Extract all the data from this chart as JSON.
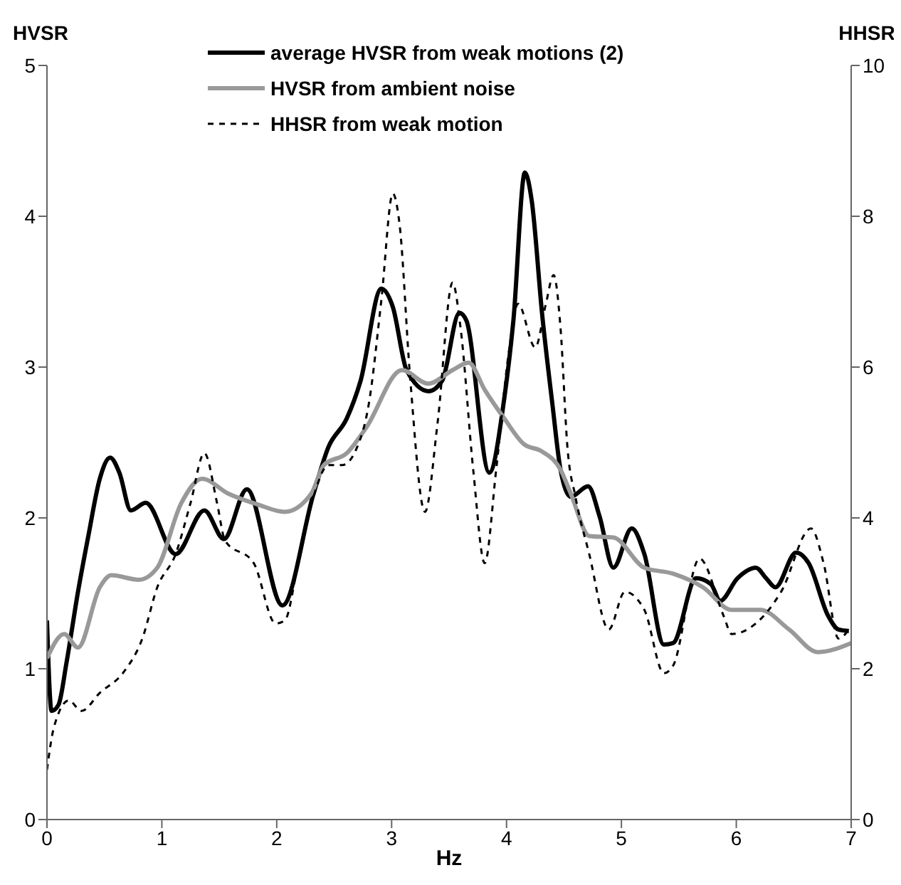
{
  "chart_data": {
    "type": "line",
    "xlabel": "Hz",
    "ylabel": "HVSR",
    "y2label": "HHSR",
    "xlim": [
      0,
      7
    ],
    "xticks": [
      0,
      1,
      2,
      3,
      4,
      5,
      6,
      7
    ],
    "ylim": [
      0,
      5
    ],
    "yticks": [
      0,
      1,
      2,
      3,
      4,
      5
    ],
    "y2lim": [
      0,
      10
    ],
    "y2ticks": [
      0,
      2,
      4,
      6,
      8,
      10
    ],
    "grid": false,
    "legend": "top",
    "marker": "none",
    "series": [
      {
        "name": "average HVSR from weak motions (2)",
        "color": "#000000",
        "line_style": "solid",
        "x": [
          0,
          0.04,
          0.1,
          0.17,
          0.27,
          0.36,
          0.46,
          0.55,
          0.63,
          0.73,
          0.86,
          1.12,
          1.37,
          1.54,
          1.74,
          2.05,
          2.32,
          2.45,
          2.61,
          2.73,
          2.91,
          3.01,
          3.13,
          3.32,
          3.44,
          3.59,
          3.65,
          3.85,
          3.98,
          4.06,
          4.16,
          4.22,
          4.31,
          4.4,
          4.47,
          4.56,
          4.71,
          4.81,
          4.93,
          5.09,
          5.2,
          5.37,
          5.45,
          5.65,
          5.78,
          5.86,
          6.01,
          6.17,
          6.26,
          6.34,
          6.52,
          6.63,
          6.8,
          6.89,
          6.98
        ],
        "values": [
          1.32,
          0.72,
          0.76,
          1.04,
          1.51,
          1.88,
          2.26,
          2.4,
          2.3,
          2.05,
          2.1,
          1.76,
          2.05,
          1.86,
          2.19,
          1.42,
          2.16,
          2.47,
          2.66,
          2.91,
          3.52,
          3.4,
          2.98,
          2.84,
          2.91,
          3.36,
          3.31,
          2.3,
          2.79,
          3.31,
          4.29,
          4.1,
          3.35,
          2.75,
          2.32,
          2.14,
          2.21,
          2.01,
          1.67,
          1.93,
          1.76,
          1.16,
          1.17,
          1.6,
          1.56,
          1.45,
          1.6,
          1.67,
          1.6,
          1.54,
          1.77,
          1.7,
          1.35,
          1.26,
          1.25
        ]
      },
      {
        "name": "HVSR from ambient noise",
        "color": "#999999",
        "line_style": "solid",
        "x": [
          0,
          0.15,
          0.27,
          0.46,
          0.56,
          0.8,
          0.96,
          1.17,
          1.35,
          1.58,
          1.83,
          2.07,
          2.3,
          2.41,
          2.61,
          2.78,
          3.09,
          3.32,
          3.53,
          3.67,
          3.81,
          3.98,
          4.15,
          4.31,
          4.47,
          4.56,
          4.72,
          4.93,
          5.2,
          5.45,
          5.71,
          5.96,
          6.21,
          6.46,
          6.71,
          7
        ],
        "values": [
          1.07,
          1.23,
          1.14,
          1.54,
          1.62,
          1.59,
          1.67,
          2.1,
          2.26,
          2.16,
          2.09,
          2.04,
          2.16,
          2.35,
          2.43,
          2.6,
          2.98,
          2.89,
          2.98,
          3.03,
          2.85,
          2.66,
          2.49,
          2.44,
          2.32,
          2.16,
          1.88,
          1.87,
          1.67,
          1.63,
          1.54,
          1.39,
          1.39,
          1.26,
          1.11,
          1.17
        ]
      },
      {
        "name": "HHSR from weak motion",
        "color": "#000000",
        "line_style": "dashed",
        "axis": "y2",
        "x": [
          0,
          0.06,
          0.19,
          0.3,
          0.46,
          0.67,
          0.83,
          0.96,
          1.12,
          1.25,
          1.37,
          1.48,
          1.55,
          1.8,
          1.99,
          2.07,
          2.2,
          2.32,
          2.45,
          2.57,
          2.7,
          2.8,
          2.91,
          3.01,
          3.07,
          3.16,
          3.29,
          3.4,
          3.53,
          3.6,
          3.71,
          3.81,
          3.91,
          4.02,
          4.1,
          4.25,
          4.34,
          4.41,
          4.47,
          4.53,
          4.6,
          4.72,
          4.89,
          5.03,
          5.2,
          5.37,
          5.45,
          5.68,
          5.89,
          5.96,
          6.17,
          6.39,
          6.65,
          6.76,
          6.89,
          6.98
        ],
        "values": [
          0.66,
          1.22,
          1.58,
          1.44,
          1.68,
          1.96,
          2.4,
          3.08,
          3.52,
          4.2,
          4.86,
          4.2,
          3.7,
          3.4,
          2.6,
          2.64,
          3.52,
          4.28,
          4.7,
          4.7,
          4.94,
          5.5,
          6.88,
          8.3,
          7.88,
          5.88,
          4.08,
          5.26,
          7.12,
          6.52,
          4.64,
          3.4,
          4.64,
          6.2,
          6.84,
          6.26,
          6.82,
          7.22,
          6.52,
          4.94,
          4.28,
          3.52,
          2.52,
          3.02,
          2.78,
          1.94,
          2.04,
          3.46,
          2.7,
          2.46,
          2.6,
          3.02,
          3.86,
          3.4,
          2.4,
          2.52
        ]
      }
    ]
  }
}
